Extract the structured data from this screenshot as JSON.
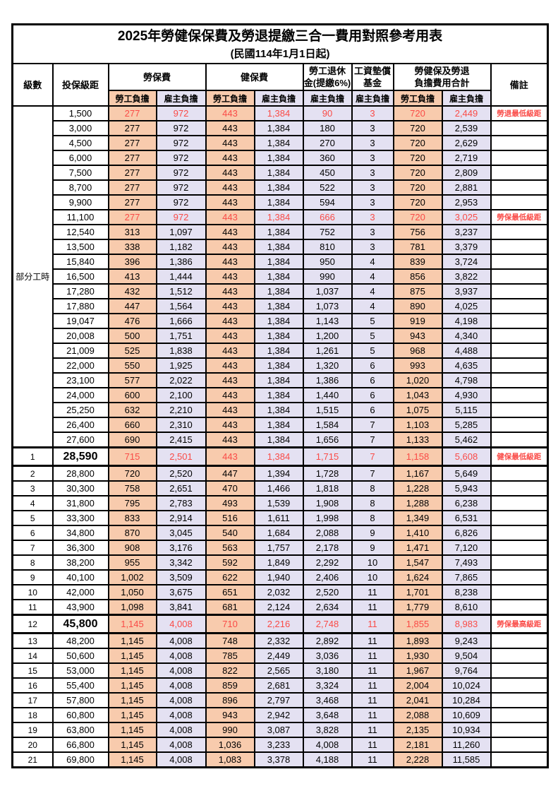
{
  "title": "2025年勞健保保費及勞退提繳三合一費用對照參考用表",
  "subtitle": "(民國114年1月1日起)",
  "colors": {
    "employee_bg": "#F8CBAD",
    "employer_bg": "#E4E1F2",
    "highlight_text": "#FA4B47",
    "grid": "#000000"
  },
  "headers": {
    "level": "級數",
    "bracket": "投保級距",
    "labor_insurance": "勞保費",
    "health_insurance": "健保費",
    "pension_line1": "勞工退休",
    "pension_line2": "金(提繳6%)",
    "wage_fund_line1": "工資墊償",
    "wage_fund_line2": "基金",
    "total_line1": "勞健保及勞退",
    "total_line2": "負擔費用合計",
    "remark": "備註",
    "employee": "勞工負擔",
    "employer": "雇主負擔"
  },
  "part_time_label": "部分工時",
  "part_time_rowspan": 23,
  "rows": [
    {
      "level": null,
      "bracket": "1,500",
      "values": [
        "277",
        "972",
        "443",
        "1,384",
        "90",
        "3",
        "720",
        "2,449"
      ],
      "remark": "勞退最低級距",
      "highlight": true,
      "emphasis": false
    },
    {
      "level": null,
      "bracket": "3,000",
      "values": [
        "277",
        "972",
        "443",
        "1,384",
        "180",
        "3",
        "720",
        "2,539"
      ],
      "remark": "",
      "highlight": false,
      "emphasis": false
    },
    {
      "level": null,
      "bracket": "4,500",
      "values": [
        "277",
        "972",
        "443",
        "1,384",
        "270",
        "3",
        "720",
        "2,629"
      ],
      "remark": "",
      "highlight": false,
      "emphasis": false
    },
    {
      "level": null,
      "bracket": "6,000",
      "values": [
        "277",
        "972",
        "443",
        "1,384",
        "360",
        "3",
        "720",
        "2,719"
      ],
      "remark": "",
      "highlight": false,
      "emphasis": false
    },
    {
      "level": null,
      "bracket": "7,500",
      "values": [
        "277",
        "972",
        "443",
        "1,384",
        "450",
        "3",
        "720",
        "2,809"
      ],
      "remark": "",
      "highlight": false,
      "emphasis": false
    },
    {
      "level": null,
      "bracket": "8,700",
      "values": [
        "277",
        "972",
        "443",
        "1,384",
        "522",
        "3",
        "720",
        "2,881"
      ],
      "remark": "",
      "highlight": false,
      "emphasis": false
    },
    {
      "level": null,
      "bracket": "9,900",
      "values": [
        "277",
        "972",
        "443",
        "1,384",
        "594",
        "3",
        "720",
        "2,953"
      ],
      "remark": "",
      "highlight": false,
      "emphasis": false
    },
    {
      "level": null,
      "bracket": "11,100",
      "values": [
        "277",
        "972",
        "443",
        "1,384",
        "666",
        "3",
        "720",
        "3,025"
      ],
      "remark": "勞保最低級距",
      "highlight": true,
      "emphasis": false
    },
    {
      "level": null,
      "bracket": "12,540",
      "values": [
        "313",
        "1,097",
        "443",
        "1,384",
        "752",
        "3",
        "756",
        "3,237"
      ],
      "remark": "",
      "highlight": false,
      "emphasis": false
    },
    {
      "level": null,
      "bracket": "13,500",
      "values": [
        "338",
        "1,182",
        "443",
        "1,384",
        "810",
        "3",
        "781",
        "3,379"
      ],
      "remark": "",
      "highlight": false,
      "emphasis": false
    },
    {
      "level": null,
      "bracket": "15,840",
      "values": [
        "396",
        "1,386",
        "443",
        "1,384",
        "950",
        "4",
        "839",
        "3,724"
      ],
      "remark": "",
      "highlight": false,
      "emphasis": false
    },
    {
      "level": null,
      "bracket": "16,500",
      "values": [
        "413",
        "1,444",
        "443",
        "1,384",
        "990",
        "4",
        "856",
        "3,822"
      ],
      "remark": "",
      "highlight": false,
      "emphasis": false
    },
    {
      "level": null,
      "bracket": "17,280",
      "values": [
        "432",
        "1,512",
        "443",
        "1,384",
        "1,037",
        "4",
        "875",
        "3,937"
      ],
      "remark": "",
      "highlight": false,
      "emphasis": false
    },
    {
      "level": null,
      "bracket": "17,880",
      "values": [
        "447",
        "1,564",
        "443",
        "1,384",
        "1,073",
        "4",
        "890",
        "4,025"
      ],
      "remark": "",
      "highlight": false,
      "emphasis": false
    },
    {
      "level": null,
      "bracket": "19,047",
      "values": [
        "476",
        "1,666",
        "443",
        "1,384",
        "1,143",
        "5",
        "919",
        "4,198"
      ],
      "remark": "",
      "highlight": false,
      "emphasis": false
    },
    {
      "level": null,
      "bracket": "20,008",
      "values": [
        "500",
        "1,751",
        "443",
        "1,384",
        "1,200",
        "5",
        "943",
        "4,340"
      ],
      "remark": "",
      "highlight": false,
      "emphasis": false
    },
    {
      "level": null,
      "bracket": "21,009",
      "values": [
        "525",
        "1,838",
        "443",
        "1,384",
        "1,261",
        "5",
        "968",
        "4,488"
      ],
      "remark": "",
      "highlight": false,
      "emphasis": false
    },
    {
      "level": null,
      "bracket": "22,000",
      "values": [
        "550",
        "1,925",
        "443",
        "1,384",
        "1,320",
        "6",
        "993",
        "4,635"
      ],
      "remark": "",
      "highlight": false,
      "emphasis": false
    },
    {
      "level": null,
      "bracket": "23,100",
      "values": [
        "577",
        "2,022",
        "443",
        "1,384",
        "1,386",
        "6",
        "1,020",
        "4,798"
      ],
      "remark": "",
      "highlight": false,
      "emphasis": false
    },
    {
      "level": null,
      "bracket": "24,000",
      "values": [
        "600",
        "2,100",
        "443",
        "1,384",
        "1,440",
        "6",
        "1,043",
        "4,930"
      ],
      "remark": "",
      "highlight": false,
      "emphasis": false
    },
    {
      "level": null,
      "bracket": "25,250",
      "values": [
        "632",
        "2,210",
        "443",
        "1,384",
        "1,515",
        "6",
        "1,075",
        "5,115"
      ],
      "remark": "",
      "highlight": false,
      "emphasis": false
    },
    {
      "level": null,
      "bracket": "26,400",
      "values": [
        "660",
        "2,310",
        "443",
        "1,384",
        "1,584",
        "7",
        "1,103",
        "5,285"
      ],
      "remark": "",
      "highlight": false,
      "emphasis": false
    },
    {
      "level": null,
      "bracket": "27,600",
      "values": [
        "690",
        "2,415",
        "443",
        "1,384",
        "1,656",
        "7",
        "1,133",
        "5,462"
      ],
      "remark": "",
      "highlight": false,
      "emphasis": false
    },
    {
      "level": "1",
      "bracket": "28,590",
      "values": [
        "715",
        "2,501",
        "443",
        "1,384",
        "1,715",
        "7",
        "1,158",
        "5,608"
      ],
      "remark": "健保最低級距",
      "highlight": true,
      "emphasis": true
    },
    {
      "level": "2",
      "bracket": "28,800",
      "values": [
        "720",
        "2,520",
        "447",
        "1,394",
        "1,728",
        "7",
        "1,167",
        "5,649"
      ],
      "remark": "",
      "highlight": false,
      "emphasis": false
    },
    {
      "level": "3",
      "bracket": "30,300",
      "values": [
        "758",
        "2,651",
        "470",
        "1,466",
        "1,818",
        "8",
        "1,228",
        "5,943"
      ],
      "remark": "",
      "highlight": false,
      "emphasis": false
    },
    {
      "level": "4",
      "bracket": "31,800",
      "values": [
        "795",
        "2,783",
        "493",
        "1,539",
        "1,908",
        "8",
        "1,288",
        "6,238"
      ],
      "remark": "",
      "highlight": false,
      "emphasis": false
    },
    {
      "level": "5",
      "bracket": "33,300",
      "values": [
        "833",
        "2,914",
        "516",
        "1,611",
        "1,998",
        "8",
        "1,349",
        "6,531"
      ],
      "remark": "",
      "highlight": false,
      "emphasis": false
    },
    {
      "level": "6",
      "bracket": "34,800",
      "values": [
        "870",
        "3,045",
        "540",
        "1,684",
        "2,088",
        "9",
        "1,410",
        "6,826"
      ],
      "remark": "",
      "highlight": false,
      "emphasis": false
    },
    {
      "level": "7",
      "bracket": "36,300",
      "values": [
        "908",
        "3,176",
        "563",
        "1,757",
        "2,178",
        "9",
        "1,471",
        "7,120"
      ],
      "remark": "",
      "highlight": false,
      "emphasis": false
    },
    {
      "level": "8",
      "bracket": "38,200",
      "values": [
        "955",
        "3,342",
        "592",
        "1,849",
        "2,292",
        "10",
        "1,547",
        "7,493"
      ],
      "remark": "",
      "highlight": false,
      "emphasis": false
    },
    {
      "level": "9",
      "bracket": "40,100",
      "values": [
        "1,002",
        "3,509",
        "622",
        "1,940",
        "2,406",
        "10",
        "1,624",
        "7,865"
      ],
      "remark": "",
      "highlight": false,
      "emphasis": false
    },
    {
      "level": "10",
      "bracket": "42,000",
      "values": [
        "1,050",
        "3,675",
        "651",
        "2,032",
        "2,520",
        "11",
        "1,701",
        "8,238"
      ],
      "remark": "",
      "highlight": false,
      "emphasis": false
    },
    {
      "level": "11",
      "bracket": "43,900",
      "values": [
        "1,098",
        "3,841",
        "681",
        "2,124",
        "2,634",
        "11",
        "1,779",
        "8,610"
      ],
      "remark": "",
      "highlight": false,
      "emphasis": false
    },
    {
      "level": "12",
      "bracket": "45,800",
      "values": [
        "1,145",
        "4,008",
        "710",
        "2,216",
        "2,748",
        "11",
        "1,855",
        "8,983"
      ],
      "remark": "勞保最高級距",
      "highlight": true,
      "emphasis": true
    },
    {
      "level": "13",
      "bracket": "48,200",
      "values": [
        "1,145",
        "4,008",
        "748",
        "2,332",
        "2,892",
        "11",
        "1,893",
        "9,243"
      ],
      "remark": "",
      "highlight": false,
      "emphasis": false
    },
    {
      "level": "14",
      "bracket": "50,600",
      "values": [
        "1,145",
        "4,008",
        "785",
        "2,449",
        "3,036",
        "11",
        "1,930",
        "9,504"
      ],
      "remark": "",
      "highlight": false,
      "emphasis": false
    },
    {
      "level": "15",
      "bracket": "53,000",
      "values": [
        "1,145",
        "4,008",
        "822",
        "2,565",
        "3,180",
        "11",
        "1,967",
        "9,764"
      ],
      "remark": "",
      "highlight": false,
      "emphasis": false
    },
    {
      "level": "16",
      "bracket": "55,400",
      "values": [
        "1,145",
        "4,008",
        "859",
        "2,681",
        "3,324",
        "11",
        "2,004",
        "10,024"
      ],
      "remark": "",
      "highlight": false,
      "emphasis": false
    },
    {
      "level": "17",
      "bracket": "57,800",
      "values": [
        "1,145",
        "4,008",
        "896",
        "2,797",
        "3,468",
        "11",
        "2,041",
        "10,284"
      ],
      "remark": "",
      "highlight": false,
      "emphasis": false
    },
    {
      "level": "18",
      "bracket": "60,800",
      "values": [
        "1,145",
        "4,008",
        "943",
        "2,942",
        "3,648",
        "11",
        "2,088",
        "10,609"
      ],
      "remark": "",
      "highlight": false,
      "emphasis": false
    },
    {
      "level": "19",
      "bracket": "63,800",
      "values": [
        "1,145",
        "4,008",
        "990",
        "3,087",
        "3,828",
        "11",
        "2,135",
        "10,934"
      ],
      "remark": "",
      "highlight": false,
      "emphasis": false
    },
    {
      "level": "20",
      "bracket": "66,800",
      "values": [
        "1,145",
        "4,008",
        "1,036",
        "3,233",
        "4,008",
        "11",
        "2,181",
        "11,260"
      ],
      "remark": "",
      "highlight": false,
      "emphasis": false
    },
    {
      "level": "21",
      "bracket": "69,800",
      "values": [
        "1,145",
        "4,008",
        "1,083",
        "3,378",
        "4,188",
        "11",
        "2,228",
        "11,585"
      ],
      "remark": "",
      "highlight": false,
      "emphasis": false
    }
  ]
}
